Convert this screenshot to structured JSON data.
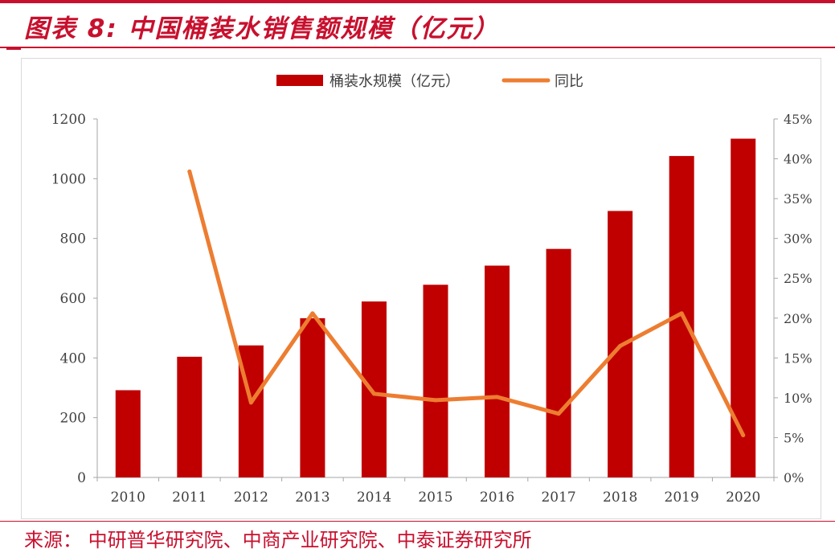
{
  "figure": {
    "title": "图表 8:  中国桶装水销售额规模（亿元）",
    "source": "来源：  中研普华研究院、中商产业研究院、中泰证券研究所"
  },
  "colors": {
    "accent": "#c8102e",
    "bar": "#c00000",
    "line": "#ed7d31",
    "axis": "#a6a6a6",
    "tick_text": "#404040"
  },
  "chart_data": {
    "type": "bar",
    "categories": [
      "2010",
      "2011",
      "2012",
      "2013",
      "2014",
      "2015",
      "2016",
      "2017",
      "2018",
      "2019",
      "2020"
    ],
    "series": [
      {
        "name": "桶装水规模（亿元）",
        "type": "bar",
        "axis": "left",
        "values": [
          292,
          404,
          442,
          533,
          589,
          645,
          709,
          765,
          892,
          1076,
          1134
        ]
      },
      {
        "name": "同比",
        "type": "line",
        "axis": "right",
        "values": [
          null,
          38.4,
          9.4,
          20.6,
          10.5,
          9.7,
          10.1,
          8.0,
          16.5,
          20.6,
          5.3
        ]
      }
    ],
    "y_left": {
      "lim": [
        0,
        1200
      ],
      "ticks": [
        "0",
        "200",
        "400",
        "600",
        "800",
        "1000",
        "1200"
      ]
    },
    "y_right": {
      "lim": [
        0,
        45
      ],
      "unit": "%",
      "ticks": [
        "0%",
        "5%",
        "10%",
        "15%",
        "20%",
        "25%",
        "30%",
        "35%",
        "40%",
        "45%"
      ]
    },
    "legend": "top-center",
    "grid": false
  }
}
